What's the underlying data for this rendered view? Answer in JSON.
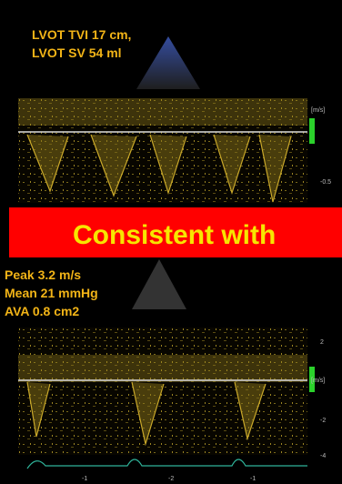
{
  "top_panel": {
    "annotation_lines": [
      "LVOT TVI 17 cm,",
      "LVOT SV 54 ml"
    ],
    "scale_unit": "[m/s]",
    "scale_label": "-0.5"
  },
  "banner": {
    "text": "Consistent with"
  },
  "bottom_panel": {
    "annotation_lines": [
      "Peak 3.2 m/s",
      "Mean 21 mmHg",
      "AVA 0.8 cm2"
    ],
    "scale_unit": "[m/s]",
    "scale_labels": [
      "2",
      "-2",
      "-4"
    ],
    "time_labels": [
      "-1",
      "-2",
      "-1"
    ]
  }
}
